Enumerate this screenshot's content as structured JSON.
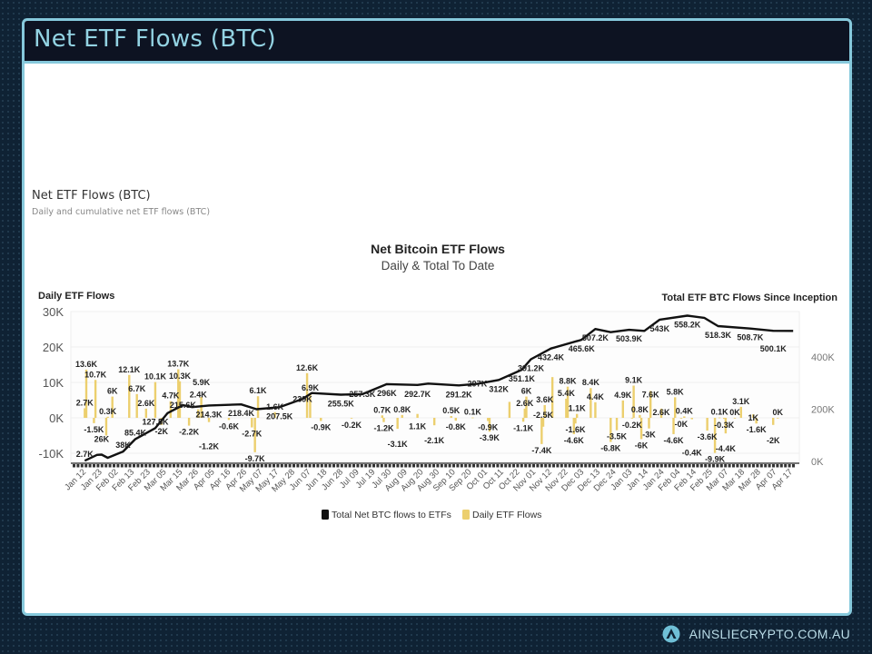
{
  "header": {
    "title": "Net ETF Flows (BTC)"
  },
  "section": {
    "title": "Net ETF Flows (BTC)",
    "subtitle": "Daily and cumulative net ETF flows (BTC)"
  },
  "footer": {
    "brand": "AINSLIECRYPTO.COM.AU",
    "logo_icon": "ainslie-a-logo"
  },
  "colors": {
    "accent": "#86c9dc",
    "header_bg": "#0d1322",
    "bars": "#eccf6e",
    "line": "#111111"
  },
  "chart_data": {
    "type": "bar+line",
    "title": "Net Bitcoin ETF Flows",
    "subtitle": "Daily & Total To Date",
    "ylabel_left": "Daily ETF Flows",
    "ylabel_right": "Total ETF BTC Flows Since Inception",
    "y_left_ticks": [
      "30K",
      "20K",
      "10K",
      "0K",
      "-10K"
    ],
    "y_left_values": [
      30,
      20,
      10,
      0,
      -10
    ],
    "y_left_unit": "K BTC",
    "y_right_ticks": [
      "400K",
      "200K",
      "0K"
    ],
    "y_right_values": [
      400,
      200,
      0
    ],
    "grid": true,
    "legend_position": "bottom",
    "legend": [
      "Total Net BTC flows to ETFs",
      "Daily ETF Flows"
    ],
    "x_ticks": [
      "Jan 12",
      "Jan 23",
      "Feb 02",
      "Feb 13",
      "Feb 23",
      "Mar 05",
      "Mar 15",
      "Mar 26",
      "Apr 05",
      "Apr 16",
      "Apr 26",
      "May 07",
      "May 17",
      "May 28",
      "Jun 07",
      "Jun 18",
      "Jun 28",
      "Jul 09",
      "Jul 19",
      "Jul 30",
      "Aug 09",
      "Aug 20",
      "Aug 30",
      "Sep 10",
      "Sep 20",
      "Oct 01",
      "Oct 11",
      "Oct 22",
      "Nov 01",
      "Nov 12",
      "Nov 22",
      "Dec 03",
      "Dec 13",
      "Dec 24",
      "Jan 03",
      "Jan 14",
      "Jan 24",
      "Feb 04",
      "Feb 14",
      "Feb 25",
      "Mar 07",
      "Mar 18",
      "Mar 28",
      "Apr 07",
      "Apr 17"
    ],
    "daily_flows": [
      [
        "2024-01-11",
        2.7,
        1
      ],
      [
        "2024-01-12",
        13.6,
        1
      ],
      [
        "2024-01-18",
        10.7,
        1
      ],
      [
        "2024-01-17",
        -1.5,
        1
      ],
      [
        "2024-01-25",
        -5,
        0
      ],
      [
        "2024-01-26",
        0.3,
        1
      ],
      [
        "2024-01-29",
        6,
        1
      ],
      [
        "2024-02-09",
        12.1,
        1
      ],
      [
        "2024-02-14",
        6.7,
        1
      ],
      [
        "2024-02-20",
        2.6,
        1
      ],
      [
        "2024-02-26",
        10.1,
        1
      ],
      [
        "2024-03-01",
        -2,
        1
      ],
      [
        "2024-03-07",
        4.7,
        1
      ],
      [
        "2024-03-12",
        13.7,
        1
      ],
      [
        "2024-03-13",
        10.3,
        1
      ],
      [
        "2024-03-19",
        -2.2,
        1
      ],
      [
        "2024-03-25",
        2.4,
        1
      ],
      [
        "2024-03-27",
        5.9,
        1
      ],
      [
        "2024-04-01",
        -1.2,
        1
      ],
      [
        "2024-04-14",
        -0.6,
        1
      ],
      [
        "2024-04-29",
        -2.7,
        1
      ],
      [
        "2024-05-01",
        -9.7,
        1
      ],
      [
        "2024-05-03",
        6.1,
        1
      ],
      [
        "2024-05-14",
        1.6,
        1
      ],
      [
        "2024-06-04",
        12.6,
        1
      ],
      [
        "2024-06-06",
        6.9,
        1
      ],
      [
        "2024-06-13",
        -0.9,
        1
      ],
      [
        "2024-07-03",
        -0.2,
        1
      ],
      [
        "2024-07-23",
        0.7,
        1
      ],
      [
        "2024-07-24",
        -1.2,
        1
      ],
      [
        "2024-08-02",
        -3.1,
        1
      ],
      [
        "2024-08-05",
        0.8,
        1
      ],
      [
        "2024-08-15",
        1.1,
        1
      ],
      [
        "2024-08-26",
        -2.1,
        1
      ],
      [
        "2024-09-06",
        0.5,
        1
      ],
      [
        "2024-09-09",
        -0.8,
        1
      ],
      [
        "2024-09-20",
        0.1,
        1
      ],
      [
        "2024-09-30",
        -0.9,
        1
      ],
      [
        "2024-10-01",
        -3.9,
        1
      ],
      [
        "2024-10-14",
        4.5,
        0
      ],
      [
        "2024-10-23",
        -1.1,
        1
      ],
      [
        "2024-10-24",
        2.6,
        1
      ],
      [
        "2024-10-25",
        6,
        1
      ],
      [
        "2024-11-04",
        -7.4,
        1
      ],
      [
        "2024-11-05",
        -2.5,
        1
      ],
      [
        "2024-11-06",
        3.6,
        1
      ],
      [
        "2024-11-11",
        11.5,
        0
      ],
      [
        "2024-11-20",
        5.4,
        1
      ],
      [
        "2024-11-21",
        8.8,
        1
      ],
      [
        "2024-11-25",
        -4.6,
        1
      ],
      [
        "2024-11-26",
        -1.6,
        1
      ],
      [
        "2024-11-27",
        1.1,
        1
      ],
      [
        "2024-12-06",
        8.4,
        1
      ],
      [
        "2024-12-09",
        4.4,
        1
      ],
      [
        "2024-12-19",
        -6.8,
        1
      ],
      [
        "2024-12-23",
        -3.5,
        1
      ],
      [
        "2024-12-27",
        4.9,
        1
      ],
      [
        "2025-01-02",
        -0.2,
        1
      ],
      [
        "2025-01-03",
        9.1,
        1
      ],
      [
        "2025-01-07",
        0.8,
        1
      ],
      [
        "2025-01-08",
        -6,
        1
      ],
      [
        "2025-01-13",
        -3,
        1
      ],
      [
        "2025-01-14",
        7.6,
        1
      ],
      [
        "2025-01-21",
        2.6,
        1
      ],
      [
        "2025-01-29",
        -4.6,
        1
      ],
      [
        "2025-01-30",
        5.8,
        1
      ],
      [
        "2025-02-03",
        -0.04,
        1
      ],
      [
        "2025-02-05",
        0.4,
        1
      ],
      [
        "2025-02-10",
        -0.4,
        1
      ],
      [
        "2025-02-20",
        -3.6,
        1
      ],
      [
        "2025-02-25",
        -9.9,
        1
      ],
      [
        "2025-02-28",
        0.1,
        1
      ],
      [
        "2025-03-03",
        -0.3,
        1
      ],
      [
        "2025-03-04",
        -4.4,
        1
      ],
      [
        "2025-03-10",
        0.02,
        1
      ],
      [
        "2025-03-14",
        3.1,
        1
      ],
      [
        "2025-03-22",
        1,
        1
      ],
      [
        "2025-03-24",
        -1.6,
        1
      ],
      [
        "2025-04-04",
        -2,
        1
      ],
      [
        "2025-04-07",
        0.01,
        1
      ]
    ],
    "cumulative_flows": [
      [
        "2024-01-11",
        2.7,
        1
      ],
      [
        "2024-01-19",
        25,
        0
      ],
      [
        "2024-01-22",
        26,
        1
      ],
      [
        "2024-01-26",
        14,
        0
      ],
      [
        "2024-02-05",
        38,
        1
      ],
      [
        "2024-02-13",
        85.4,
        1
      ],
      [
        "2024-02-26",
        127.5,
        1
      ],
      [
        "2024-03-05",
        185,
        0
      ],
      [
        "2024-03-15",
        215.6,
        1
      ],
      [
        "2024-03-21",
        208,
        0
      ],
      [
        "2024-04-01",
        214.3,
        1
      ],
      [
        "2024-04-22",
        218.4,
        1
      ],
      [
        "2024-05-02",
        200,
        0
      ],
      [
        "2024-05-17",
        207.5,
        1
      ],
      [
        "2024-06-01",
        239,
        1
      ],
      [
        "2024-06-07",
        262,
        0
      ],
      [
        "2024-06-26",
        255.5,
        1
      ],
      [
        "2024-07-10",
        257.3,
        1
      ],
      [
        "2024-07-26",
        296,
        1
      ],
      [
        "2024-08-15",
        292.7,
        1
      ],
      [
        "2024-08-22",
        298,
        0
      ],
      [
        "2024-09-11",
        291.2,
        1
      ],
      [
        "2024-09-23",
        297,
        1
      ],
      [
        "2024-10-07",
        312,
        1
      ],
      [
        "2024-10-22",
        351.1,
        1
      ],
      [
        "2024-10-28",
        391.2,
        1
      ],
      [
        "2024-11-10",
        432.4,
        1
      ],
      [
        "2024-11-30",
        465.6,
        1
      ],
      [
        "2024-12-09",
        507.2,
        1
      ],
      [
        "2024-12-19",
        495,
        0
      ],
      [
        "2024-12-31",
        503.9,
        1
      ],
      [
        "2025-01-10",
        500,
        0
      ],
      [
        "2025-01-20",
        543,
        1
      ],
      [
        "2025-02-07",
        558.2,
        1
      ],
      [
        "2025-02-18",
        550,
        0
      ],
      [
        "2025-02-27",
        518.3,
        1
      ],
      [
        "2025-03-20",
        508.7,
        1
      ],
      [
        "2025-04-04",
        500.1,
        1
      ],
      [
        "2025-04-17",
        500,
        0
      ]
    ]
  }
}
